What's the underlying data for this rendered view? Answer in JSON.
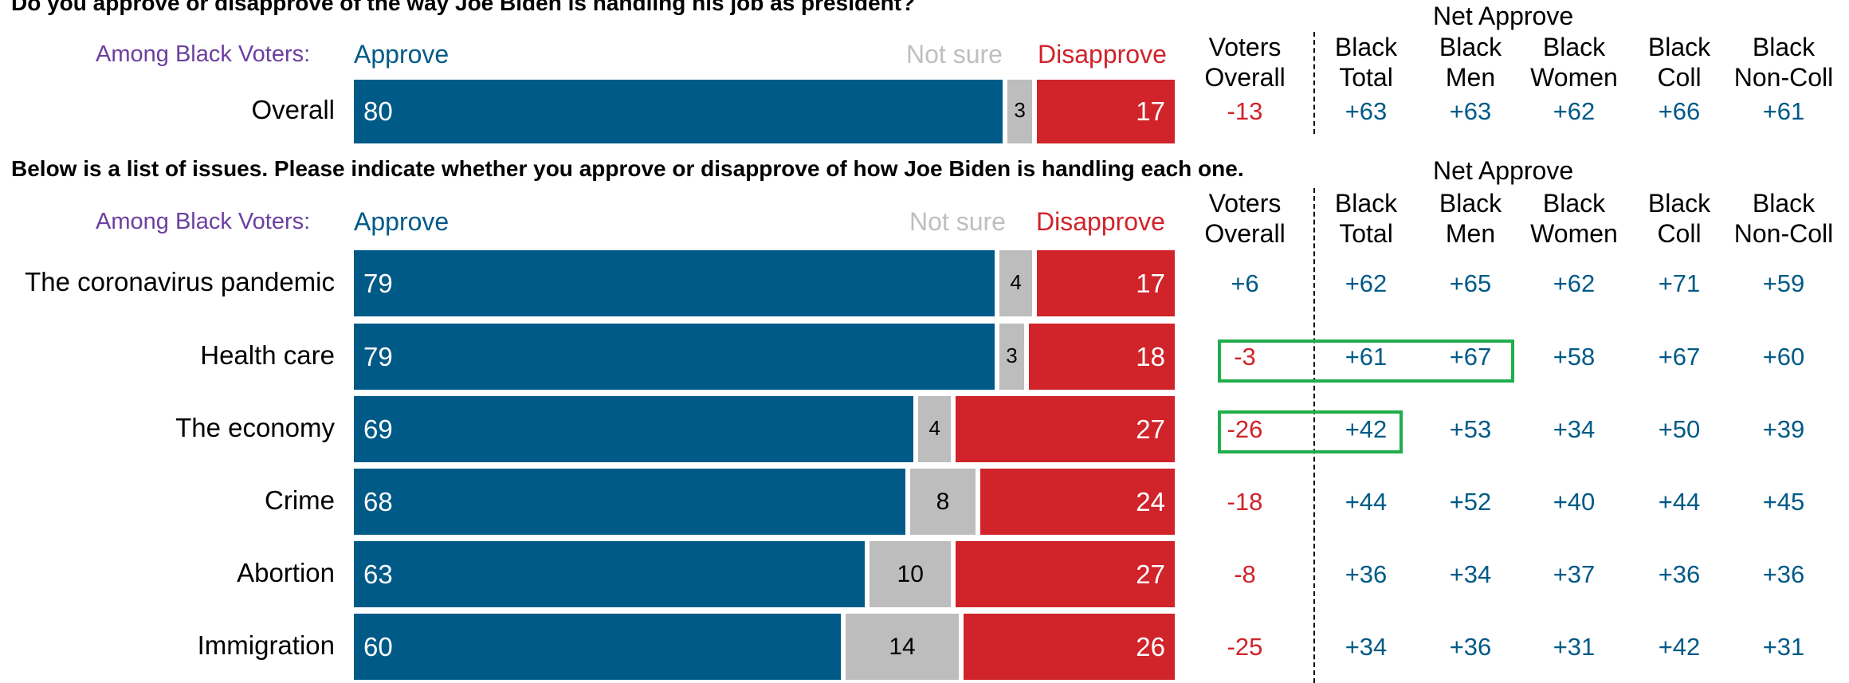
{
  "colors": {
    "approve": "#005a87",
    "not_sure": "#bdbdbd",
    "disapprove": "#d0232a",
    "among": "#6b3fa0",
    "positive": "#005a87",
    "negative": "#d0232a",
    "highlight": "#1fae4b"
  },
  "legend": {
    "approve": "Approve",
    "not_sure": "Not sure",
    "disapprove": "Disapprove"
  },
  "among_label": "Among Black Voters:",
  "net_approve_label": "Net Approve",
  "columns": [
    [
      "Voters",
      "Overall"
    ],
    [
      "Black",
      "Total"
    ],
    [
      "Black",
      "Men"
    ],
    [
      "Black",
      "Women"
    ],
    [
      "Black",
      "Coll"
    ],
    [
      "Black",
      "Non-Coll"
    ]
  ],
  "chart_data": [
    {
      "type": "bar",
      "stacked": true,
      "orientation": "horizontal",
      "title": "Do you approve or disapprove of the way Joe Biden is handling his job as president?",
      "categories": [
        "Overall"
      ],
      "series": [
        {
          "name": "Approve",
          "values": [
            80
          ]
        },
        {
          "name": "Not sure",
          "values": [
            3
          ]
        },
        {
          "name": "Disapprove",
          "values": [
            17
          ]
        }
      ],
      "xlim": [
        0,
        100
      ],
      "net_approve": [
        [
          "-13",
          "+63",
          "+63",
          "+62",
          "+66",
          "+61"
        ]
      ]
    },
    {
      "type": "bar",
      "stacked": true,
      "orientation": "horizontal",
      "title": "Below is a list of issues. Please indicate whether you approve or disapprove of how Joe Biden is handling each one.",
      "categories": [
        "The coronavirus pandemic",
        "Health care",
        "The economy",
        "Crime",
        "Abortion",
        "Immigration"
      ],
      "series": [
        {
          "name": "Approve",
          "values": [
            79,
            79,
            69,
            68,
            63,
            60
          ]
        },
        {
          "name": "Not sure",
          "values": [
            4,
            3,
            4,
            8,
            10,
            14
          ]
        },
        {
          "name": "Disapprove",
          "values": [
            17,
            18,
            27,
            24,
            27,
            26
          ]
        }
      ],
      "xlim": [
        0,
        100
      ],
      "net_approve": [
        [
          "+6",
          "+62",
          "+65",
          "+62",
          "+71",
          "+59"
        ],
        [
          "-3",
          "+61",
          "+67",
          "+58",
          "+67",
          "+60"
        ],
        [
          "-26",
          "+42",
          "+53",
          "+34",
          "+50",
          "+39"
        ],
        [
          "-18",
          "+44",
          "+52",
          "+40",
          "+44",
          "+45"
        ],
        [
          "-8",
          "+36",
          "+34",
          "+37",
          "+36",
          "+36"
        ],
        [
          "-25",
          "+34",
          "+36",
          "+31",
          "+42",
          "+31"
        ]
      ]
    }
  ]
}
